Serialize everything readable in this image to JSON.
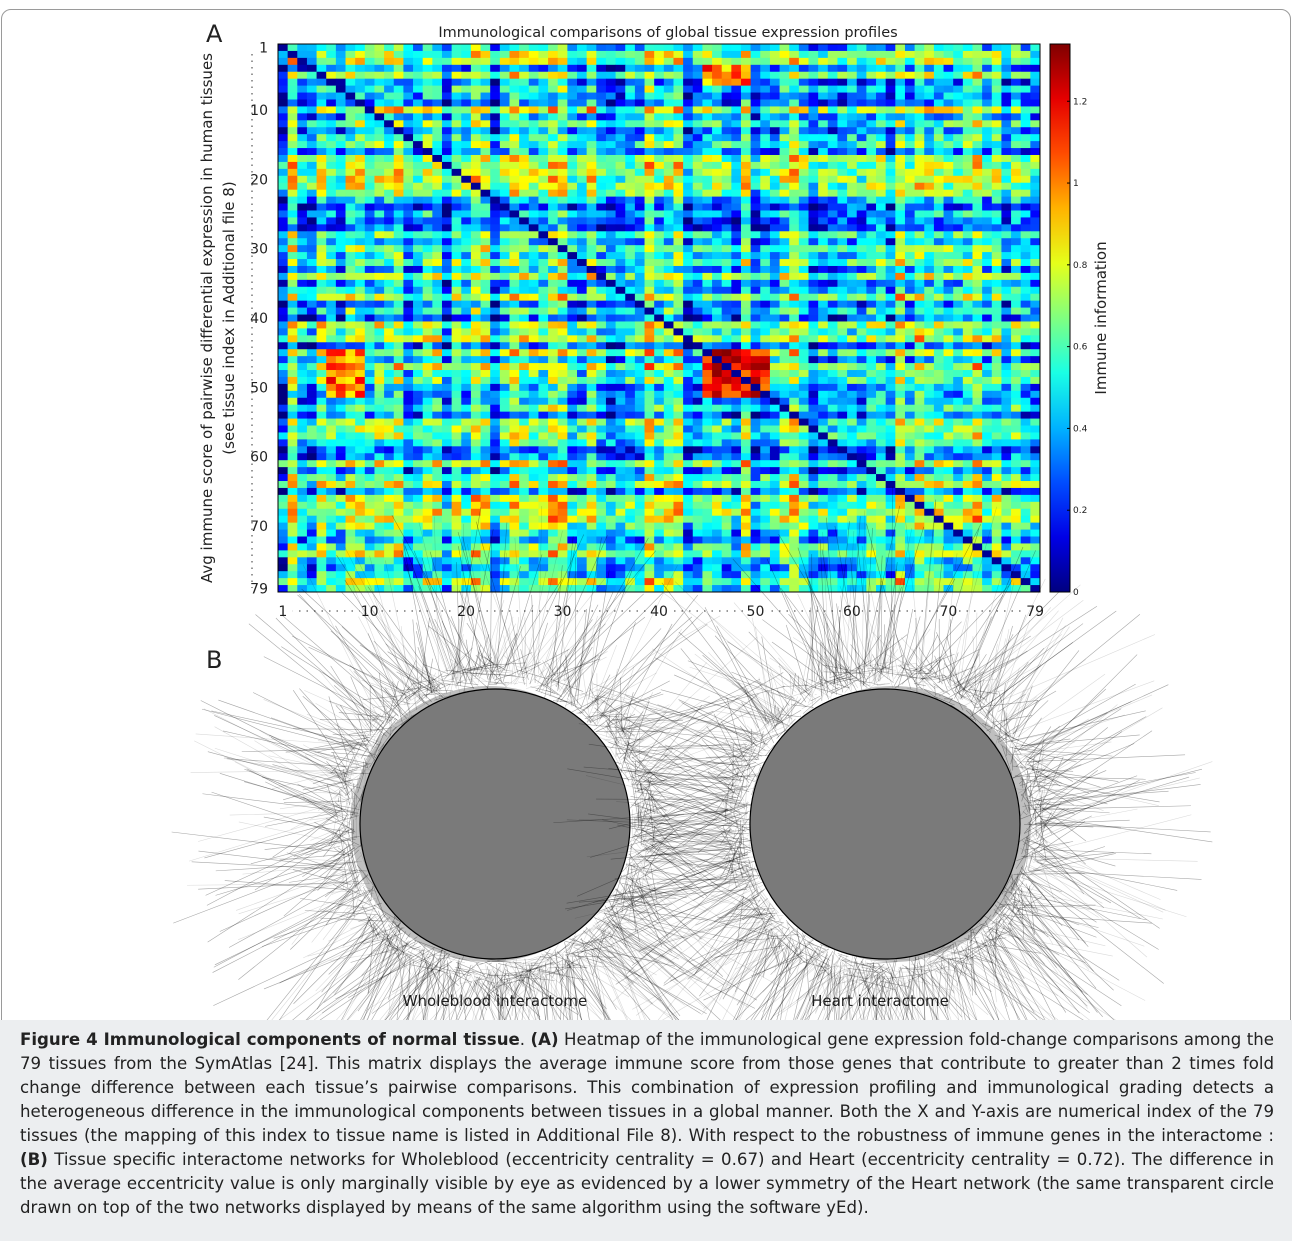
{
  "chart_data": {
    "type": "heatmap",
    "title": "Immunological comparisons of global tissue expression profiles",
    "y_label": "Avg immune score of pairwise differential expression in human tissues",
    "y_label_note": "(see tissue index in Additional file 8)",
    "colorbar_label": "Immune information",
    "colormap": "jet",
    "xlim": [
      1,
      79
    ],
    "ylim": [
      1,
      79
    ],
    "xticks": [
      1,
      10,
      20,
      30,
      40,
      50,
      60,
      70,
      79
    ],
    "yticks": [
      1,
      10,
      20,
      30,
      40,
      50,
      60,
      70,
      79
    ],
    "colorbar_lim": [
      0,
      1.34
    ],
    "colorbar_ticks": [
      0,
      0.2,
      0.4,
      0.6,
      0.8,
      1,
      1.2
    ]
  },
  "panels": {
    "a": "A",
    "b": "B"
  },
  "networks": [
    {
      "label": "Wholeblood interactome"
    },
    {
      "label": "Heart interactome"
    }
  ],
  "caption": {
    "title": "Figure 4 Immunological components of normal tissue",
    "title_end": ".",
    "a_marker": "(A)",
    "a_text": "Heatmap of the immunological gene expression fold-change comparisons among the 79 tissues from the SymAtlas [24]. This matrix displays the average immune score from those genes that contribute to greater than 2 times fold change difference between each tissue’s pairwise comparisons. This combination of expression profiling and immunological grading detects a heterogeneous difference in the immunological components between tissues in a global manner. Both the X and Y-axis are numerical index of the 79 tissues (the mapping of this index to tissue name is listed in Additional File 8). With respect to the robustness of immune genes in the interactome :",
    "b_marker": "(B)",
    "b_text": "Tissue specific interactome networks for Wholeblood (eccentricity centrality = 0.67) and Heart (eccentricity centrality = 0.72). The difference in the average eccentricity value is only marginally visible by eye as evidenced by a lower symmetry of the Heart network (the same transparent circle drawn on top of the two networks displayed by means of the same algorithm using the software yEd)."
  }
}
